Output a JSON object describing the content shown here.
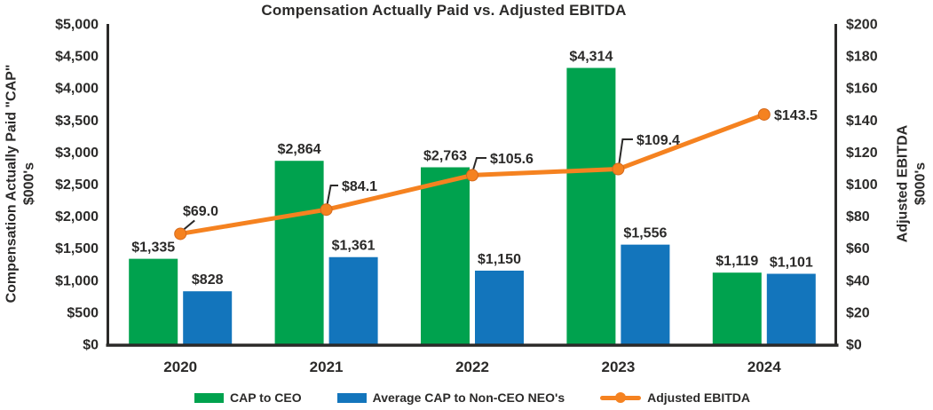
{
  "chart_data": {
    "type": "bar",
    "subtype": "bar-line-combo",
    "title": "Compensation Actually Paid vs. Adjusted EBITDA",
    "categories": [
      "2020",
      "2021",
      "2022",
      "2023",
      "2024"
    ],
    "series": [
      {
        "name": "CAP to CEO",
        "kind": "bar",
        "axis": "left",
        "color": "#00A24E",
        "values": [
          1335,
          2864,
          2763,
          4314,
          1119
        ],
        "labels": [
          "$1,335",
          "$2,864",
          "$2,763",
          "$4,314",
          "$1,119"
        ]
      },
      {
        "name": "Average CAP to Non-CEO NEO's",
        "kind": "bar",
        "axis": "left",
        "color": "#1375BC",
        "values": [
          828,
          1361,
          1150,
          1556,
          1101
        ],
        "labels": [
          "$828",
          "$1,361",
          "$1,150",
          "$1,556",
          "$1,101"
        ]
      },
      {
        "name": "Adjusted EBITDA",
        "kind": "line",
        "axis": "right",
        "color": "#F58220",
        "values": [
          69.0,
          84.1,
          105.6,
          109.4,
          143.5
        ],
        "labels": [
          "$69.0",
          "$84.1",
          "$105.6",
          "$109.4",
          "$143.5"
        ]
      }
    ],
    "left_axis": {
      "title": "Compensation Actually Paid \"CAP\"",
      "units": "$000's",
      "min": 0,
      "max": 5000,
      "step": 500,
      "tick_labels": [
        "$0",
        "$500",
        "$1,000",
        "$1,500",
        "$2,000",
        "$2,500",
        "$3,000",
        "$3,500",
        "$4,000",
        "$4,500",
        "$5,000"
      ]
    },
    "right_axis": {
      "title": "Adjusted EBITDA",
      "units": "$000's",
      "min": 0,
      "max": 200,
      "step": 20,
      "tick_labels": [
        "$0",
        "$20",
        "$40",
        "$60",
        "$80",
        "$100",
        "$120",
        "$140",
        "$160",
        "$180",
        "$200"
      ]
    },
    "grid": false,
    "legend_position": "bottom",
    "text_color": "#2b2a29"
  }
}
